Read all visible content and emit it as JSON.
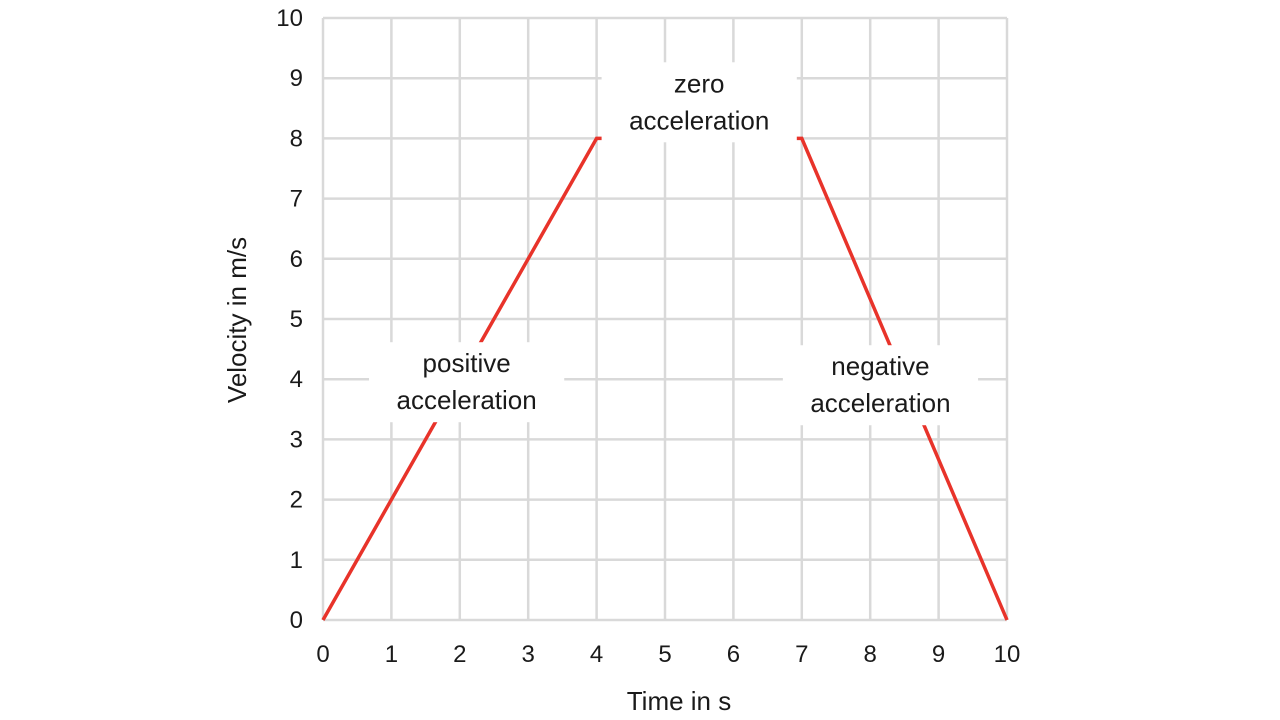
{
  "chart_data": {
    "type": "line",
    "xlabel": "Time in s",
    "ylabel": "Velocity in m/s",
    "xlim": [
      0,
      10
    ],
    "ylim": [
      0,
      10
    ],
    "x_ticks": [
      "0",
      "1",
      "2",
      "3",
      "4",
      "5",
      "6",
      "7",
      "8",
      "9",
      "10"
    ],
    "y_ticks": [
      "0",
      "1",
      "2",
      "3",
      "4",
      "5",
      "6",
      "7",
      "8",
      "9",
      "10"
    ],
    "grid": true,
    "series": [
      {
        "x": [
          0,
          4,
          7,
          10
        ],
        "y": [
          0,
          8,
          8,
          0
        ],
        "color": "#e8332a"
      }
    ],
    "annotations": [
      {
        "lines": [
          "zero",
          "acceleration"
        ],
        "x": 5.5,
        "y": 8.6
      },
      {
        "lines": [
          "positive",
          "acceleration"
        ],
        "x": 2.1,
        "y": 3.95
      },
      {
        "lines": [
          "negative",
          "acceleration"
        ],
        "x": 8.15,
        "y": 3.9
      }
    ]
  }
}
